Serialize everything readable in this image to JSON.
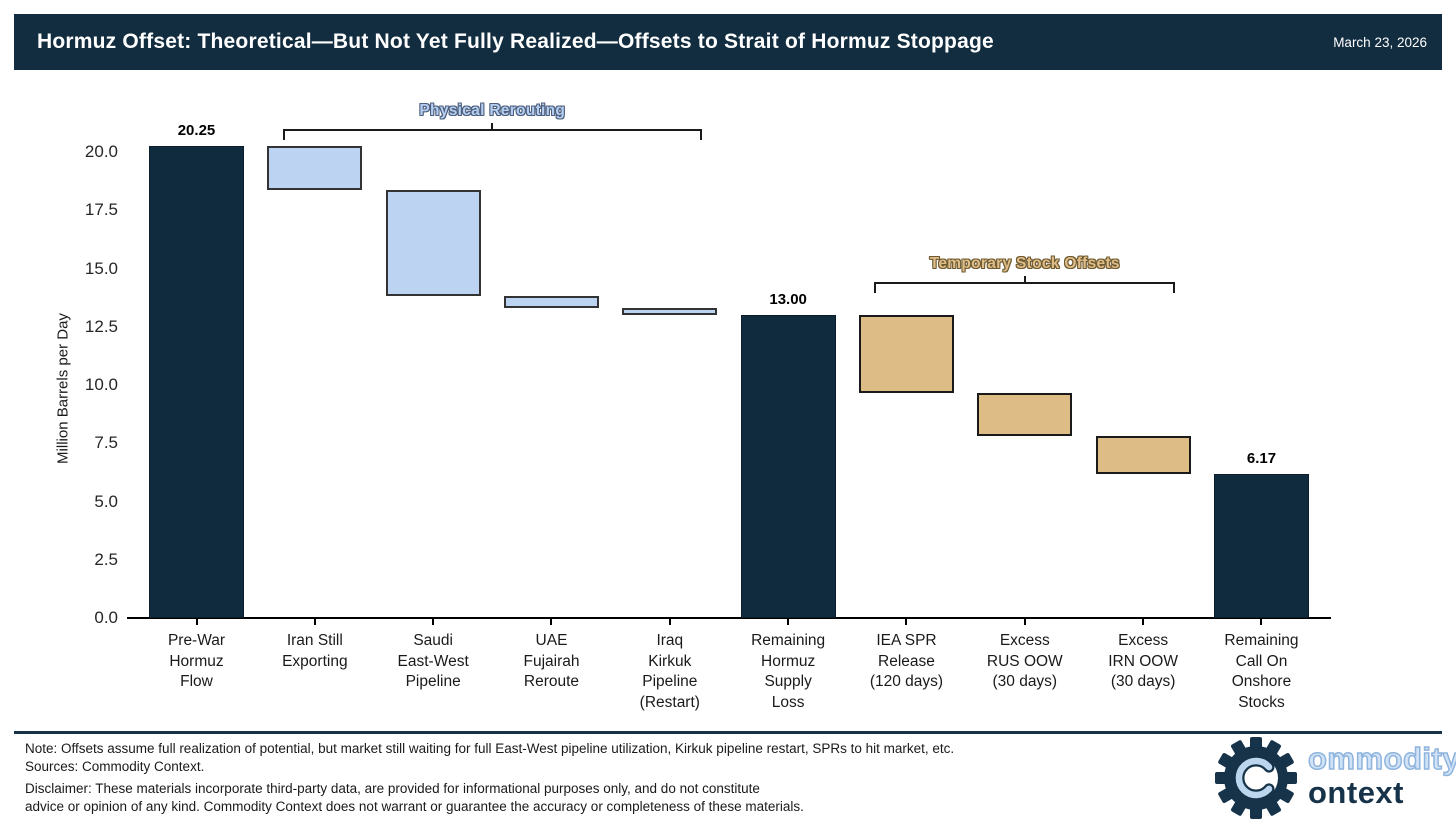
{
  "header": {
    "title": "Hormuz Offset: Theoretical—But Not Yet Fully Realized—Offsets to Strait of Hormuz Stoppage",
    "date": "March 23, 2026"
  },
  "chart_data": {
    "type": "bar",
    "subtype": "waterfall",
    "ylabel": "Million Barrels per Day",
    "ylim": [
      0,
      21.5
    ],
    "yticks": [
      0.0,
      2.5,
      5.0,
      7.5,
      10.0,
      12.5,
      15.0,
      17.5,
      20.0
    ],
    "grid": false,
    "bars": [
      {
        "label": "Pre-War\nHormuz\nFlow",
        "base": 0,
        "top": 20.25,
        "value": 20.25,
        "value_label": "20.25",
        "role": "total"
      },
      {
        "label": "Iran Still\nExporting",
        "base": 18.35,
        "top": 20.25,
        "value": -1.9,
        "role": "reroute"
      },
      {
        "label": "Saudi\nEast-West\nPipeline",
        "base": 13.8,
        "top": 18.35,
        "value": -4.55,
        "role": "reroute"
      },
      {
        "label": "UAE\nFujairah\nReroute",
        "base": 13.3,
        "top": 13.8,
        "value": -0.5,
        "role": "reroute"
      },
      {
        "label": "Iraq\nKirkuk\nPipeline\n(Restart)",
        "base": 13.0,
        "top": 13.3,
        "value": -0.3,
        "role": "reroute"
      },
      {
        "label": "Remaining\nHormuz\nSupply\nLoss",
        "base": 0,
        "top": 13.0,
        "value": 13.0,
        "value_label": "13.00",
        "role": "total"
      },
      {
        "label": "IEA SPR\nRelease\n(120 days)",
        "base": 9.67,
        "top": 13.0,
        "value": -3.33,
        "role": "stock"
      },
      {
        "label": "Excess\nRUS OOW\n(30 days)",
        "base": 7.82,
        "top": 9.67,
        "value": -1.85,
        "role": "stock"
      },
      {
        "label": "Excess\nIRN OOW\n(30 days)",
        "base": 6.17,
        "top": 7.82,
        "value": -1.65,
        "role": "stock"
      },
      {
        "label": "Remaining\nCall On\nOnshore\nStocks",
        "base": 0,
        "top": 6.17,
        "value": 6.17,
        "value_label": "6.17",
        "role": "total"
      }
    ],
    "annotations": [
      {
        "label": "Physical Rerouting",
        "from_bar": 1,
        "to_bar": 4,
        "y_value": 21.0,
        "style": "reroute"
      },
      {
        "label": "Temporary Stock Offsets",
        "from_bar": 6,
        "to_bar": 8,
        "y_value": 14.4,
        "style": "stock"
      }
    ],
    "colors": {
      "total_fill": "#102b3d",
      "total_border": "#0b1d2a",
      "reroute_fill": "#bdd3f2",
      "reroute_border": "#333333",
      "stock_fill": "#debc86",
      "stock_border": "#1a1a1a",
      "axis": "#000000"
    }
  },
  "footer": {
    "lines": [
      "Note: Offsets assume full realization of potential, but market still waiting for full East-West pipeline utilization, Kirkuk pipeline restart, SPRs to hit market, etc.",
      "Sources: Commodity Context.",
      "Disclaimer: These materials incorporate third-party data, are provided for informational purposes only, and do not constitute",
      "advice or opinion of any kind. Commodity Context does not warrant or guarantee the accuracy or completeness of these materials."
    ],
    "logo": {
      "word_top": "ommodity",
      "word_bottom": "ontext"
    }
  }
}
